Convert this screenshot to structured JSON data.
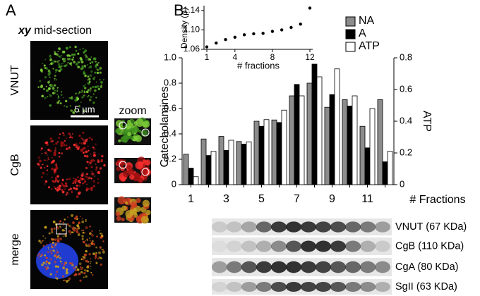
{
  "panel_a": {
    "label": "A",
    "title_italic": "xy",
    "title": "mid-section",
    "channels": [
      "VNUT",
      "CgB",
      "merge"
    ],
    "scale_bar": "5 µm",
    "zoom": "zoom"
  },
  "panel_b": {
    "label": "B"
  },
  "chart_data": [
    {
      "type": "bar",
      "ylabel": "Catecholamines",
      "y2label": "ATP",
      "xlabel": "# Fractions",
      "categories": [
        "1",
        null,
        "3",
        null,
        "5",
        null,
        "7",
        null,
        "9",
        null,
        "11",
        null
      ],
      "series": [
        {
          "name": "NA",
          "color": "#8c8c8c",
          "values": [
            0.24,
            0.36,
            0.38,
            0.34,
            0.5,
            0.51,
            0.7,
            0.8,
            0.61,
            0.67,
            0.46,
            0.67
          ]
        },
        {
          "name": "A",
          "color": "#000000",
          "values": [
            0.13,
            0.23,
            0.27,
            0.32,
            0.46,
            0.49,
            0.79,
            0.95,
            0.71,
            0.62,
            0.29,
            0.18
          ]
        },
        {
          "name": "ATP",
          "color": "#ffffff",
          "axis": "y2",
          "values": [
            0.05,
            0.21,
            0.28,
            0.27,
            0.41,
            0.47,
            0.56,
            0.68,
            0.73,
            0.56,
            0.48,
            0.21
          ]
        }
      ],
      "ylim": [
        0,
        1
      ],
      "yticks": [
        0,
        0.2,
        0.4,
        0.6,
        0.8,
        {
          "value": 1,
          "label": "1.0"
        }
      ],
      "y2lim": [
        0,
        0.8
      ],
      "y2ticks": [
        0,
        0.2,
        0.4,
        0.6,
        0.8
      ],
      "legend": "top-right"
    },
    {
      "type": "scatter",
      "ylabel": "Density (ρ)",
      "xlabel": "# fractions",
      "x": [
        1,
        2,
        3,
        4,
        5,
        6,
        7,
        8,
        9,
        10,
        11,
        12
      ],
      "values": [
        1.065,
        1.073,
        1.08,
        1.085,
        1.09,
        1.092,
        1.093,
        1.097,
        1.1,
        1.105,
        1.112,
        1.145
      ],
      "color": "#000000",
      "xlim": [
        1,
        12
      ],
      "xticks": [
        1,
        4,
        8,
        12
      ],
      "ylim": [
        1.06,
        1.15
      ],
      "yticks": [
        1.06,
        {
          "value": 1.1,
          "label": "1.10"
        },
        1.14
      ]
    }
  ],
  "blots": [
    "VNUT (67 KDa)",
    "CgB (110 KDa)",
    "CgA (80 KDa)",
    "SgII (63 KDa)"
  ]
}
